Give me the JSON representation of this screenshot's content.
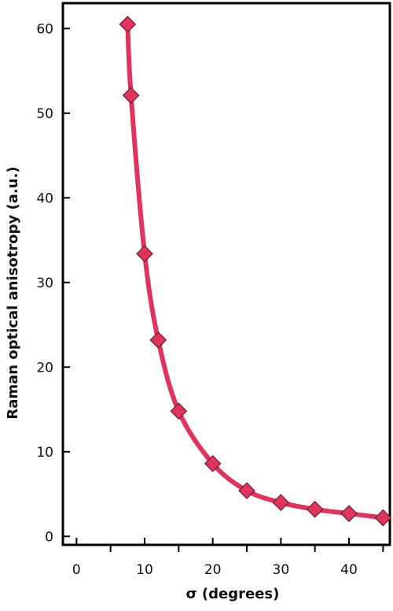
{
  "chart_data": {
    "type": "line",
    "title": "",
    "xlabel": "σ (degrees)",
    "ylabel": "Raman optical anisotropy (a.u.)",
    "xlim": [
      -2,
      46
    ],
    "ylim": [
      -1,
      63
    ],
    "x_ticks": [
      0,
      10,
      20,
      30,
      40
    ],
    "y_ticks": [
      0,
      10,
      20,
      30,
      40,
      50,
      60
    ],
    "x_minor_ticks": [
      5,
      15,
      25,
      35,
      45
    ],
    "grid": false,
    "legend": "none",
    "series": [
      {
        "x": [
          7.5,
          8,
          10,
          12,
          15,
          20,
          25,
          30,
          35,
          40,
          45
        ],
        "y": [
          60.5,
          52.1,
          33.4,
          23.2,
          14.8,
          8.6,
          5.4,
          4.0,
          3.2,
          2.7,
          2.2
        ]
      }
    ],
    "colors": {
      "line": "#e0335e",
      "marker_fill": "#e0335e",
      "marker_edge": "#6b1e30",
      "axis": "#000000"
    }
  }
}
